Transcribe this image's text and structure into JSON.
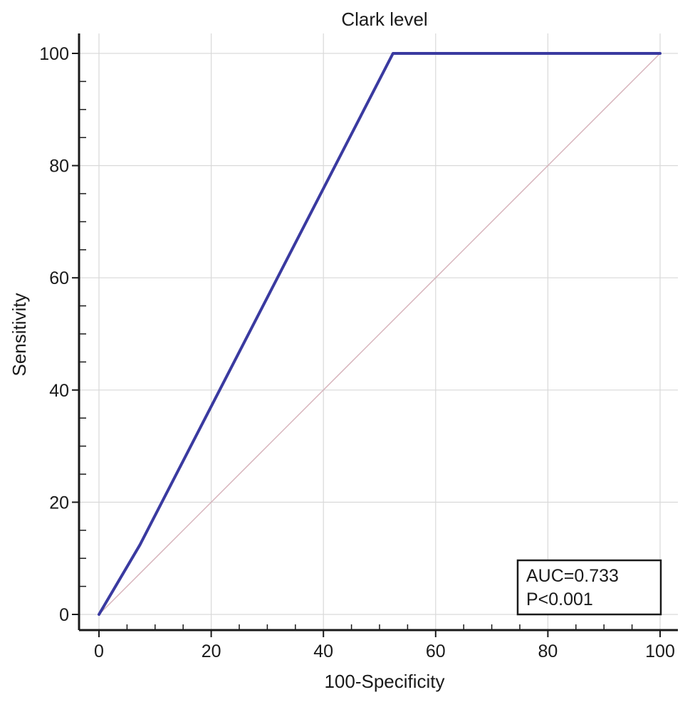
{
  "chart_data": {
    "type": "line",
    "title": "Clark level",
    "xlabel": "100-Specificity",
    "ylabel": "Sensitivity",
    "xlim": [
      0,
      100
    ],
    "ylim": [
      0,
      100
    ],
    "xticks": [
      0,
      20,
      40,
      60,
      80,
      100
    ],
    "yticks": [
      0,
      20,
      40,
      60,
      80,
      100
    ],
    "grid": true,
    "series": [
      {
        "color": "#3a3aa0",
        "x": [
          0,
          7.3,
          52.4,
          100
        ],
        "y": [
          0,
          12.4,
          100,
          100
        ]
      },
      {
        "style": "reference-diagonal",
        "color": "#d7b3bb",
        "x": [
          0,
          100
        ],
        "y": [
          0,
          100
        ]
      }
    ],
    "annotation": {
      "lines": [
        "AUC=0.733",
        "P<0.001"
      ],
      "position": "bottom-right"
    }
  }
}
